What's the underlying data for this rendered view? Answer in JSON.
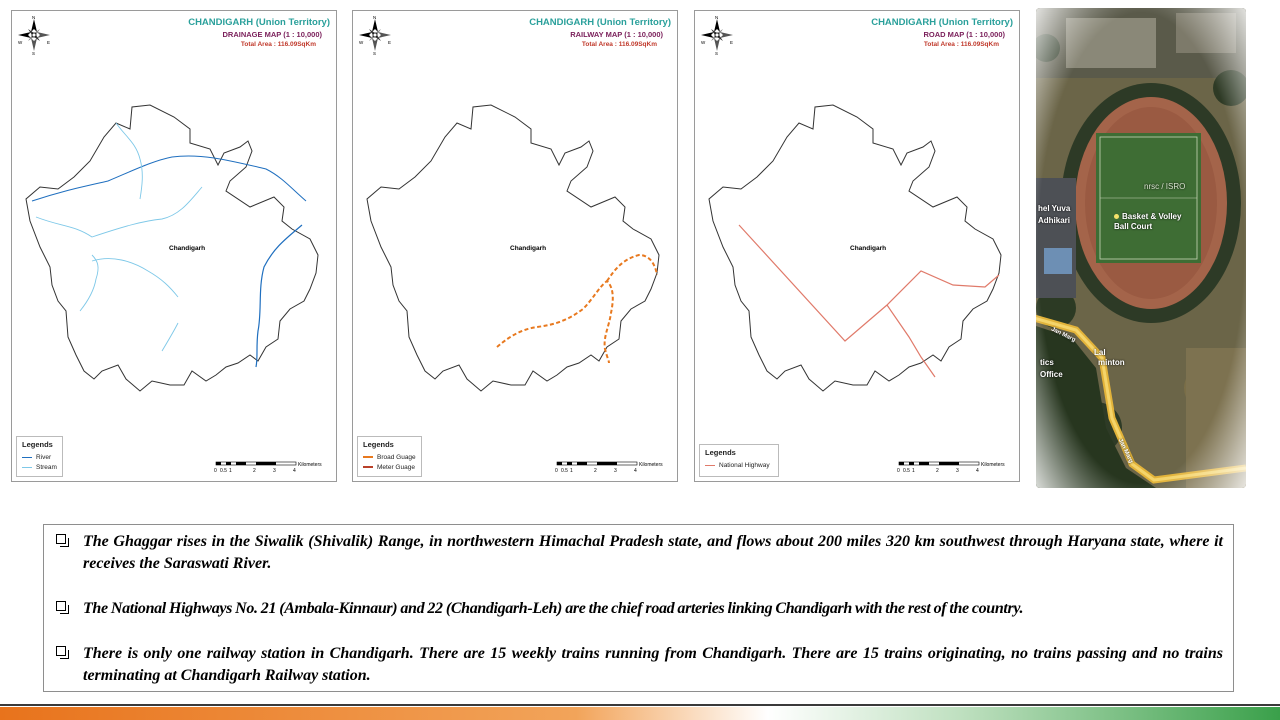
{
  "maps": [
    {
      "title": "CHANDIGARH (Union Territory)",
      "subtitle": "DRAINAGE MAP (1 : 10,000)",
      "area": "Total Area : 116.09SqKm",
      "city_label": "Chandigarh",
      "compass": {
        "n": "N",
        "s": "S",
        "e": "E",
        "w": "W"
      },
      "legend": {
        "title": "Legends",
        "items": [
          {
            "label": "River",
            "color": "#1f6fbf",
            "style": "solid"
          },
          {
            "label": "Stream",
            "color": "#7ec8e8",
            "style": "solid"
          }
        ]
      },
      "scale": {
        "unit": "Kilometers",
        "ticks": [
          "0",
          "0.5",
          "1",
          "2",
          "3",
          "4"
        ]
      }
    },
    {
      "title": "CHANDIGARH (Union Territory)",
      "subtitle": "RAILWAY MAP (1 : 10,000)",
      "area": "Total Area : 116.09SqKm",
      "city_label": "Chandigarh",
      "compass": {
        "n": "N",
        "s": "S",
        "e": "E",
        "w": "W"
      },
      "legend": {
        "title": "Legends",
        "items": [
          {
            "label": "Broad Guage",
            "color": "#e8791f",
            "style": "dashed"
          },
          {
            "label": "Meter Guage",
            "color": "#b9412a",
            "style": "solid"
          }
        ]
      },
      "scale": {
        "unit": "Kilometers",
        "ticks": [
          "0",
          "0.5",
          "1",
          "2",
          "3",
          "4"
        ]
      }
    },
    {
      "title": "CHANDIGARH (Union Territory)",
      "subtitle": "ROAD MAP (1 : 10,000)",
      "area": "Total Area : 116.09SqKm",
      "city_label": "Chandigarh",
      "compass": {
        "n": "N",
        "s": "S",
        "e": "E",
        "w": "W"
      },
      "legend": {
        "title": "Legends",
        "items": [
          {
            "label": "National Highway",
            "color": "#e07a6a",
            "style": "solid"
          }
        ]
      },
      "scale": {
        "unit": "Kilometers",
        "ticks": [
          "0",
          "0.5",
          "1",
          "2",
          "3",
          "4"
        ]
      }
    }
  ],
  "photo": {
    "labels": {
      "watermark": "nrsc / ISRO",
      "court": "Basket & Volley Ball Court",
      "left_top": "hel Yuva",
      "left_bottom": "Adhikari",
      "lal": "Lal",
      "mint": "minton",
      "tics": "tics",
      "office": "Office",
      "road1": "Jan Marg",
      "road2": "Jan Marg"
    }
  },
  "bullets": [
    "The Ghaggar rises in the Siwalik (Shivalik) Range, in northwestern Himachal Pradesh state, and flows about 200 miles 320 km southwest through Haryana state, where it receives the Saraswati River.",
    "The National Highways No. 21 (Ambala-Kinnaur) and 22 (Chandigarh-Leh) are the chief road arteries linking Chandigarh with the rest of the country.",
    "There is only one railway station in Chandigarh. There are 15 weekly trains running from Chandigarh. There are 15 trains originating, no trains passing and no trains terminating at Chandigarh Railway station."
  ],
  "colors": {
    "title": "#2aa09b",
    "subtitle": "#7a1f5a",
    "area": "#c0392b",
    "river": "#1f6fbf",
    "stream": "#7ec8e8",
    "rail": "#e8791f",
    "road": "#e07a6a",
    "bar_orange": "#e8731c",
    "bar_green": "#3aa04a"
  }
}
